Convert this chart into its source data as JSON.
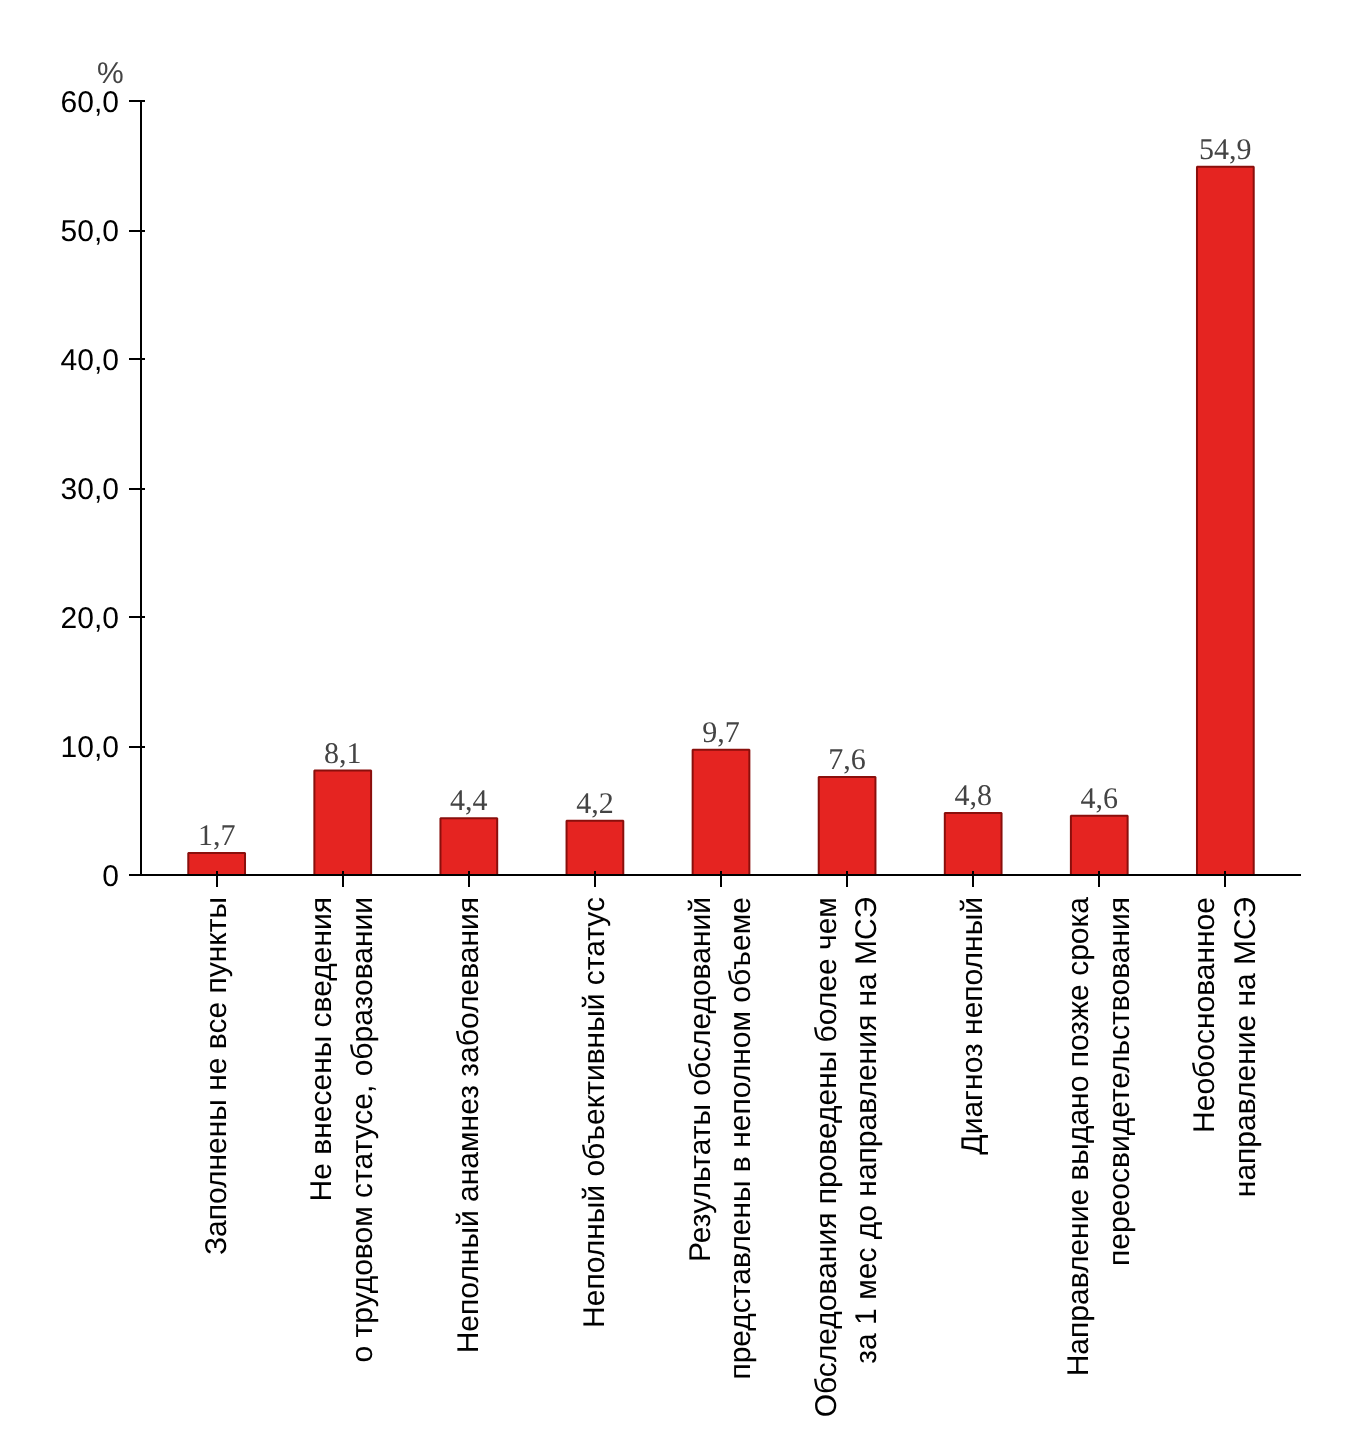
{
  "chart_data": {
    "type": "bar",
    "ylabel": "%",
    "categories": [
      "Заполнены не все пункты",
      "Не внесены сведения\nо трудовом статусе, образовании",
      "Неполный анамнез заболевания",
      "Неполный объективный статус",
      "Результаты обследований\nпредставлены в неполном объеме",
      "Обследования проведены более чем\nза 1 мес до направления на МСЭ",
      "Диагноз неполный",
      "Направление выдано позже срока\nпереосвидетельствования",
      "Необоснованное\nнаправление на МСЭ"
    ],
    "values": [
      1.7,
      8.1,
      4.4,
      4.2,
      9.7,
      7.6,
      4.8,
      4.6,
      54.9
    ],
    "value_labels": [
      "1,7",
      "8,1",
      "4,4",
      "4,2",
      "9,7",
      "7,6",
      "4,8",
      "4,6",
      "54,9"
    ],
    "color": "#e52421",
    "ylim": [
      0,
      60
    ],
    "yticks": [
      0,
      {
        "value": 10,
        "label": "10,0"
      },
      {
        "value": 20,
        "label": "20,0"
      },
      {
        "value": 30,
        "label": "30,0"
      },
      {
        "value": 40,
        "label": "40,0"
      },
      {
        "value": 50,
        "label": "50,0"
      },
      {
        "value": 60,
        "label": "60,0"
      }
    ],
    "grid": false
  }
}
